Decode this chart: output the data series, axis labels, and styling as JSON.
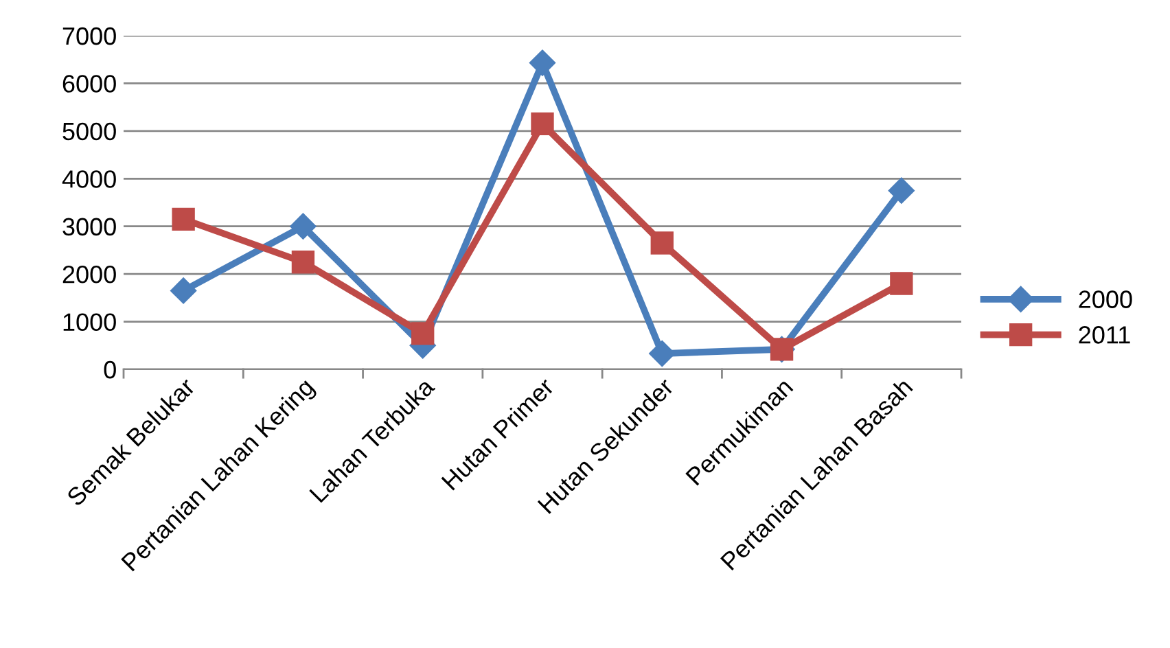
{
  "chart_data": {
    "type": "line",
    "categories": [
      "Semak Belukar",
      "Pertanian Lahan Kering",
      "Lahan Terbuka",
      "Hutan Primer",
      "Hutan Sekunder",
      "Permukiman",
      "Pertanian Lahan Basah"
    ],
    "series": [
      {
        "name": "2000",
        "color": "#4a7ebb",
        "marker": "diamond",
        "values": [
          1650,
          3000,
          500,
          6430,
          330,
          420,
          3750
        ]
      },
      {
        "name": "2011",
        "color": "#be4b48",
        "marker": "square",
        "values": [
          3150,
          2250,
          750,
          5150,
          2650,
          420,
          1800
        ]
      }
    ],
    "ylim": [
      0,
      7000
    ],
    "yticks": [
      0,
      1000,
      2000,
      3000,
      4000,
      5000,
      6000,
      7000
    ],
    "grid": "y",
    "legend": "right",
    "line_style": "solid"
  }
}
